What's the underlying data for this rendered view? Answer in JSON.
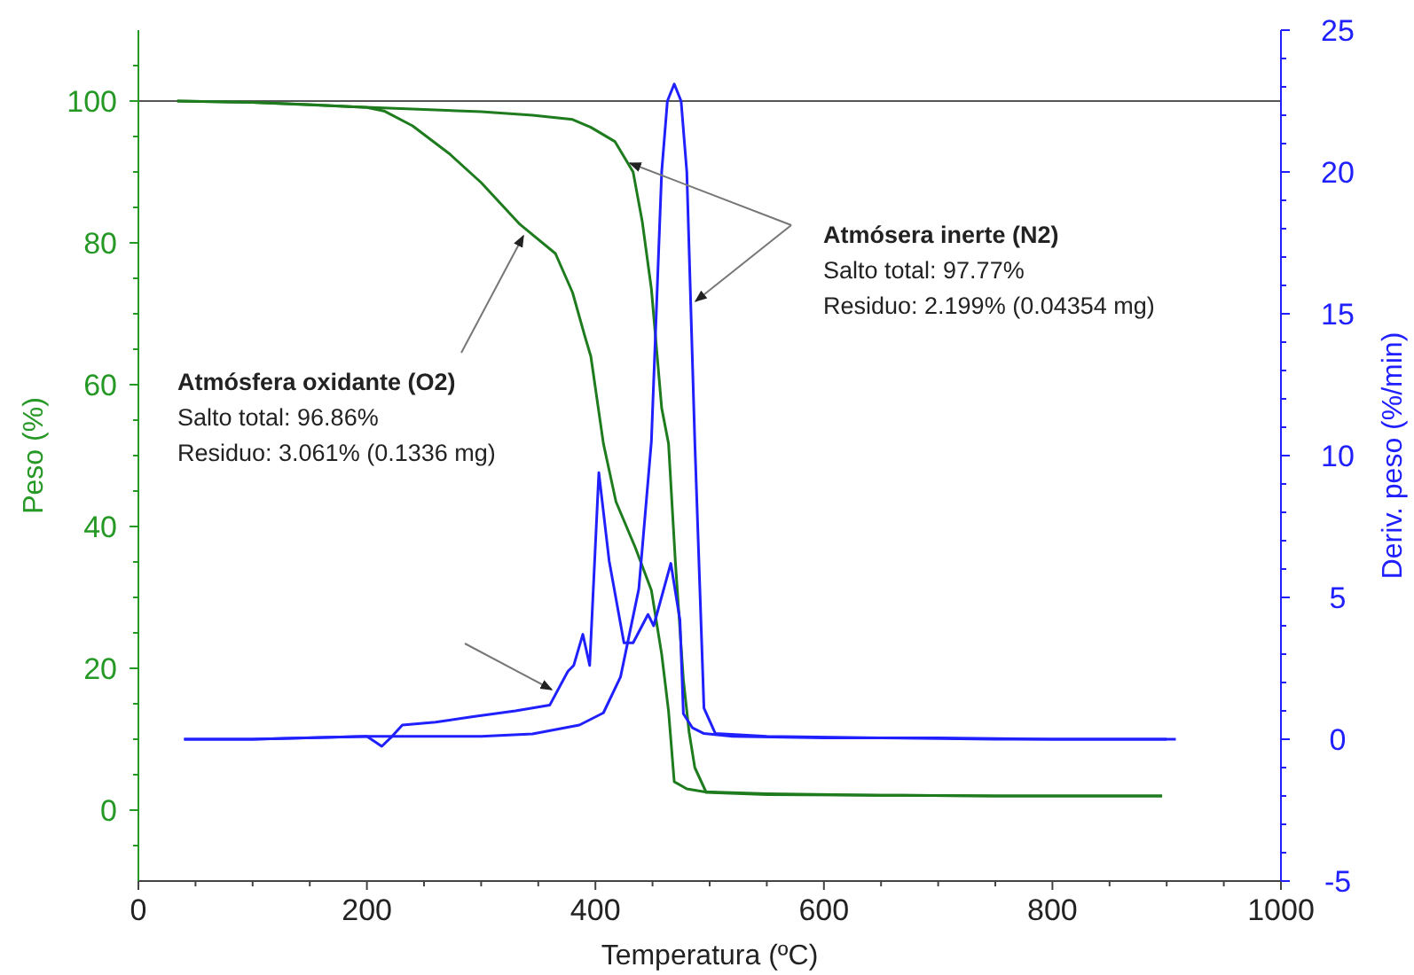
{
  "chart_data": {
    "type": "line",
    "xlabel": "Temperatura (ºC)",
    "ylabel": "Peso (%)",
    "y2label": "Deriv. peso (%/min)",
    "xlim": [
      0,
      1000
    ],
    "xticks": [
      0,
      {
        "value": 50,
        "label": null
      },
      200,
      {
        "value": 100,
        "label": null
      },
      {
        "value": 150,
        "label": null
      },
      {
        "value": 250,
        "label": null
      },
      {
        "value": 300,
        "label": null
      },
      {
        "value": 350,
        "label": null
      },
      400,
      {
        "value": 450,
        "label": null
      },
      {
        "value": 500,
        "label": null
      },
      {
        "value": 550,
        "label": null
      },
      600,
      {
        "value": 650,
        "label": null
      },
      {
        "value": 700,
        "label": null
      },
      {
        "value": 750,
        "label": null
      },
      800,
      {
        "value": 850,
        "label": null
      },
      {
        "value": 900,
        "label": null
      },
      {
        "value": 950,
        "label": null
      },
      1000
    ],
    "ylim": [
      -10,
      110
    ],
    "yticks": [
      0,
      20,
      40,
      60,
      80,
      100,
      {
        "value": -5,
        "label": null
      },
      {
        "value": 5,
        "label": null
      },
      {
        "value": 10,
        "label": null
      },
      {
        "value": 15,
        "label": null
      },
      {
        "value": 25,
        "label": null
      },
      {
        "value": 30,
        "label": null
      },
      {
        "value": 35,
        "label": null
      },
      {
        "value": 45,
        "label": null
      },
      {
        "value": 50,
        "label": null
      },
      {
        "value": 55,
        "label": null
      },
      {
        "value": 65,
        "label": null
      },
      {
        "value": 70,
        "label": null
      },
      {
        "value": 75,
        "label": null
      },
      {
        "value": 85,
        "label": null
      },
      {
        "value": 90,
        "label": null
      },
      {
        "value": 95,
        "label": null
      },
      {
        "value": 105,
        "label": null
      }
    ],
    "y2lim": [
      -5,
      25
    ],
    "y2ticks": [
      -5,
      0,
      5,
      10,
      15,
      20,
      25,
      {
        "value": -4,
        "label": null
      },
      {
        "value": -3,
        "label": null
      },
      {
        "value": -2,
        "label": null
      },
      {
        "value": -1,
        "label": null
      },
      {
        "value": 1,
        "label": null
      },
      {
        "value": 2,
        "label": null
      },
      {
        "value": 3,
        "label": null
      },
      {
        "value": 4,
        "label": null
      },
      {
        "value": 6,
        "label": null
      },
      {
        "value": 7,
        "label": null
      },
      {
        "value": 8,
        "label": null
      },
      {
        "value": 9,
        "label": null
      },
      {
        "value": 11,
        "label": null
      },
      {
        "value": 12,
        "label": null
      },
      {
        "value": 13,
        "label": null
      },
      {
        "value": 14,
        "label": null
      },
      {
        "value": 16,
        "label": null
      },
      {
        "value": 17,
        "label": null
      },
      {
        "value": 18,
        "label": null
      },
      {
        "value": 19,
        "label": null
      },
      {
        "value": 21,
        "label": null
      },
      {
        "value": 22,
        "label": null
      },
      {
        "value": 23,
        "label": null
      },
      {
        "value": 24,
        "label": null
      }
    ],
    "grid": false,
    "marker": "none",
    "line_style": "solid",
    "ref_lines": [
      {
        "axis": "y",
        "value": 100,
        "color": "#555555"
      }
    ],
    "series": [
      {
        "color": "#1e7b1e",
        "x": [
          34,
          100,
          150,
          200,
          215,
          240,
          272,
          300,
          334,
          365,
          380,
          391,
          396,
          407,
          418,
          435,
          449,
          458,
          464,
          469,
          480,
          495,
          550,
          650,
          750,
          896
        ],
        "values": [
          100,
          99.8,
          99.5,
          99.1,
          98.6,
          96.5,
          92.6,
          88.5,
          82.6,
          78.5,
          73,
          66.7,
          64,
          51.7,
          43.5,
          37,
          31,
          22,
          14,
          4,
          3,
          2.6,
          2.3,
          2.1,
          2,
          2
        ]
      },
      {
        "color": "#1e7b1e",
        "x": [
          34,
          100,
          189,
          250,
          300,
          345,
          380,
          396,
          417,
          433,
          441,
          449,
          458,
          464,
          470,
          477,
          482,
          487,
          497,
          550,
          650,
          750,
          896
        ],
        "values": [
          100,
          99.8,
          99.2,
          98.8,
          98.5,
          98,
          97.4,
          96.3,
          94.3,
          90,
          83,
          73.5,
          56.7,
          51.7,
          35,
          18.4,
          11,
          6,
          2.5,
          2.2,
          2.1,
          2,
          2
        ]
      },
      {
        "axis": "y2",
        "color": "#2020ff",
        "x": [
          40,
          100,
          200,
          213,
          222,
          231,
          260,
          293,
          330,
          360,
          376,
          381,
          389,
          395,
          403,
          412,
          425,
          433,
          446,
          451,
          466,
          474,
          477,
          485,
          495,
          520,
          600,
          700,
          800,
          900
        ],
        "values": [
          0,
          0,
          0.1,
          -0.25,
          0.1,
          0.5,
          0.6,
          0.8,
          1,
          1.2,
          2.4,
          2.6,
          3.7,
          2.6,
          9.4,
          6.3,
          3.4,
          3.4,
          4.4,
          4,
          6.2,
          4.2,
          0.9,
          0.4,
          0.2,
          0.1,
          0.05,
          0.05,
          0,
          0
        ]
      },
      {
        "axis": "y2",
        "color": "#2020ff",
        "x": [
          40,
          100,
          200,
          300,
          345,
          386,
          407,
          422,
          438,
          449,
          458,
          463,
          469,
          475,
          480,
          487,
          495,
          505,
          550,
          650,
          750,
          908
        ],
        "values": [
          0,
          0,
          0.1,
          0.1,
          0.19,
          0.5,
          0.93,
          2.2,
          5.3,
          10.5,
          20,
          22.5,
          23.1,
          22.5,
          20,
          10.5,
          1.1,
          0.2,
          0.1,
          0.05,
          0,
          0
        ]
      }
    ],
    "annotations": [
      {
        "text": "Atmósfera oxidante (O2)\nSalto total: 96.86%\nResiduo: 3.061% (0.1336 mg)",
        "x": 337,
        "y": 81
      },
      "Atmósera inerte (N2)\nSalto total: 97.77%\nResiduo: 2.199% (0.04354 mg)"
    ]
  }
}
